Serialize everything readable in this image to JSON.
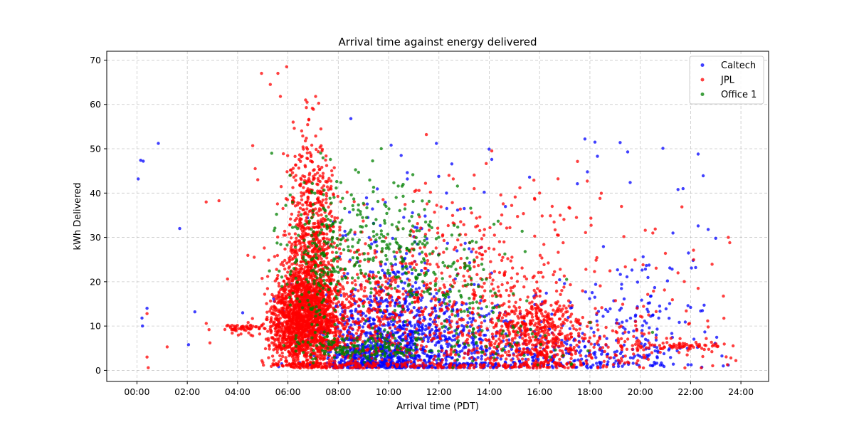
{
  "chart_data": {
    "type": "scatter",
    "title": "Arrival time against energy delivered",
    "xlabel": "Arrival time (PDT)",
    "ylabel": "kWh Delivered",
    "xlim": [
      -1.2,
      25.1
    ],
    "ylim": [
      -2.5,
      72
    ],
    "x_ticks": [
      0,
      2,
      4,
      6,
      8,
      10,
      12,
      14,
      16,
      18,
      20,
      22,
      24
    ],
    "x_tick_labels": [
      "00:00",
      "02:00",
      "04:00",
      "06:00",
      "08:00",
      "10:00",
      "12:00",
      "14:00",
      "16:00",
      "18:00",
      "20:00",
      "22:00",
      "24:00"
    ],
    "y_ticks": [
      0,
      10,
      20,
      30,
      40,
      50,
      60,
      70
    ],
    "y_tick_labels": [
      "0",
      "10",
      "20",
      "30",
      "40",
      "50",
      "60",
      "70"
    ],
    "grid": true,
    "legend_position": "top-right",
    "series": [
      {
        "name": "Caltech",
        "color": "#0000ff",
        "clusters": [
          {
            "cx": 10.0,
            "sx": 1.6,
            "cy": 8,
            "sy": 6,
            "n": 650
          },
          {
            "cx": 9.3,
            "sx": 1.0,
            "cy": 3,
            "sy": 2.5,
            "n": 300
          },
          {
            "cx": 12.5,
            "sx": 2.2,
            "cy": 6,
            "sy": 5,
            "n": 320
          },
          {
            "cx": 16.5,
            "sx": 3.0,
            "cy": 3,
            "sy": 2.5,
            "n": 200
          },
          {
            "cx": 19.5,
            "sx": 1.6,
            "cy": 10,
            "sy": 7,
            "n": 160
          },
          {
            "cx": 10.5,
            "sx": 2.0,
            "cy": 25,
            "sy": 10,
            "n": 120
          }
        ],
        "points": [
          {
            "x": 0.05,
            "y": 43.2
          },
          {
            "x": 0.15,
            "y": 47.4
          },
          {
            "x": 0.25,
            "y": 47.2
          },
          {
            "x": 0.2,
            "y": 11.8
          },
          {
            "x": 0.22,
            "y": 10.0
          },
          {
            "x": 0.4,
            "y": 14.0
          },
          {
            "x": 0.85,
            "y": 51.2
          },
          {
            "x": 1.7,
            "y": 32.0
          },
          {
            "x": 2.05,
            "y": 5.8
          },
          {
            "x": 2.3,
            "y": 13.2
          },
          {
            "x": 4.2,
            "y": 13.0
          },
          {
            "x": 8.5,
            "y": 56.8
          },
          {
            "x": 10.1,
            "y": 50.8
          },
          {
            "x": 10.5,
            "y": 48.5
          },
          {
            "x": 11.9,
            "y": 51.2
          },
          {
            "x": 14.1,
            "y": 47.6
          },
          {
            "x": 15.6,
            "y": 43.6
          },
          {
            "x": 17.8,
            "y": 52.2
          },
          {
            "x": 18.2,
            "y": 51.5
          },
          {
            "x": 18.3,
            "y": 48.3
          },
          {
            "x": 19.2,
            "y": 51.4
          },
          {
            "x": 19.5,
            "y": 49.3
          },
          {
            "x": 20.9,
            "y": 50.1
          },
          {
            "x": 21.5,
            "y": 40.8
          },
          {
            "x": 21.7,
            "y": 41.0
          },
          {
            "x": 22.3,
            "y": 48.8
          },
          {
            "x": 22.5,
            "y": 43.9
          },
          {
            "x": 22.3,
            "y": 32.6
          },
          {
            "x": 22.7,
            "y": 31.8
          },
          {
            "x": 23.0,
            "y": 29.8
          },
          {
            "x": 22.1,
            "y": 24.8
          },
          {
            "x": 22.2,
            "y": 23.2
          },
          {
            "x": 22.0,
            "y": 14.2
          },
          {
            "x": 22.4,
            "y": 13.4
          },
          {
            "x": 21.3,
            "y": 31.0
          },
          {
            "x": 19.6,
            "y": 42.4
          },
          {
            "x": 17.5,
            "y": 42.1
          },
          {
            "x": 17.9,
            "y": 44.8
          },
          {
            "x": 23.3,
            "y": 1.0
          },
          {
            "x": 23.5,
            "y": 1.2
          },
          {
            "x": 13.8,
            "y": 40.2
          },
          {
            "x": 12.3,
            "y": 40.0
          }
        ]
      },
      {
        "name": "JPL",
        "color": "#ff0000",
        "clusters": [
          {
            "cx": 6.8,
            "sx": 0.6,
            "cy": 12,
            "sy": 6,
            "n": 1400
          },
          {
            "cx": 6.9,
            "sx": 0.5,
            "cy": 30,
            "sy": 12,
            "n": 700
          },
          {
            "cx": 5.9,
            "sx": 0.4,
            "cy": 9,
            "sy": 5,
            "n": 300
          },
          {
            "cx": 8.7,
            "sx": 1.3,
            "cy": 10,
            "sy": 8,
            "n": 450
          },
          {
            "cx": 12.3,
            "sx": 2.3,
            "cy": 12,
            "sy": 10,
            "n": 550
          },
          {
            "cx": 15.8,
            "sx": 1.0,
            "cy": 8,
            "sy": 5,
            "n": 500
          },
          {
            "cx": 18.5,
            "sx": 2.2,
            "cy": 6,
            "sy": 5,
            "n": 200
          },
          {
            "cx": 4.3,
            "sx": 0.5,
            "cy": 9.5,
            "sy": 0.6,
            "n": 60
          },
          {
            "cx": 21.7,
            "sx": 1.1,
            "cy": 5.5,
            "sy": 0.5,
            "n": 70
          },
          {
            "cx": 13.0,
            "sx": 4.0,
            "cy": 30,
            "sy": 8,
            "n": 160
          }
        ],
        "points": [
          {
            "x": 0.4,
            "y": 12.8
          },
          {
            "x": 0.4,
            "y": 3.0
          },
          {
            "x": 0.45,
            "y": 0.6
          },
          {
            "x": 1.2,
            "y": 5.3
          },
          {
            "x": 2.75,
            "y": 38.0
          },
          {
            "x": 2.9,
            "y": 6.2
          },
          {
            "x": 4.95,
            "y": 67.0
          },
          {
            "x": 5.6,
            "y": 67.0
          },
          {
            "x": 5.95,
            "y": 68.5
          },
          {
            "x": 5.3,
            "y": 64.5
          },
          {
            "x": 5.7,
            "y": 61.8
          },
          {
            "x": 6.7,
            "y": 61.0
          },
          {
            "x": 7.1,
            "y": 61.8
          },
          {
            "x": 11.5,
            "y": 53.2
          },
          {
            "x": 14.1,
            "y": 49.5
          },
          {
            "x": 23.5,
            "y": 30.0
          },
          {
            "x": 23.8,
            "y": 2.2
          },
          {
            "x": 23.6,
            "y": 2.8
          },
          {
            "x": 20.2,
            "y": 31.6
          },
          {
            "x": 20.5,
            "y": 31.0
          },
          {
            "x": 21.0,
            "y": 26.4
          },
          {
            "x": 21.5,
            "y": 22.0
          },
          {
            "x": 22.3,
            "y": 18.5
          },
          {
            "x": 22.7,
            "y": 9.8
          },
          {
            "x": 4.6,
            "y": 50.7
          },
          {
            "x": 4.7,
            "y": 45.5
          },
          {
            "x": 4.8,
            "y": 43.0
          },
          {
            "x": 16.5,
            "y": 37.0
          },
          {
            "x": 16.0,
            "y": 40.0
          },
          {
            "x": 15.8,
            "y": 38.8
          },
          {
            "x": 18.4,
            "y": 38.8
          },
          {
            "x": 17.2,
            "y": 36.6
          },
          {
            "x": 13.4,
            "y": 41.0
          },
          {
            "x": 12.4,
            "y": 44.0
          }
        ]
      },
      {
        "name": "Office 1",
        "color": "#008000",
        "clusters": [
          {
            "cx": 7.2,
            "sx": 0.6,
            "cy": 24,
            "sy": 10,
            "n": 180
          },
          {
            "cx": 9.3,
            "sx": 1.4,
            "cy": 30,
            "sy": 7,
            "n": 180
          },
          {
            "cx": 12.2,
            "sx": 1.5,
            "cy": 20,
            "sy": 8,
            "n": 180
          },
          {
            "cx": 9.0,
            "sx": 1.2,
            "cy": 5,
            "sy": 1.5,
            "n": 150
          },
          {
            "cx": 14.5,
            "sx": 1.8,
            "cy": 6,
            "sy": 4,
            "n": 60
          }
        ],
        "points": [
          {
            "x": 7.3,
            "y": 49.0
          },
          {
            "x": 8.1,
            "y": 42.4
          },
          {
            "x": 9.9,
            "y": 37.0
          }
        ]
      }
    ]
  }
}
